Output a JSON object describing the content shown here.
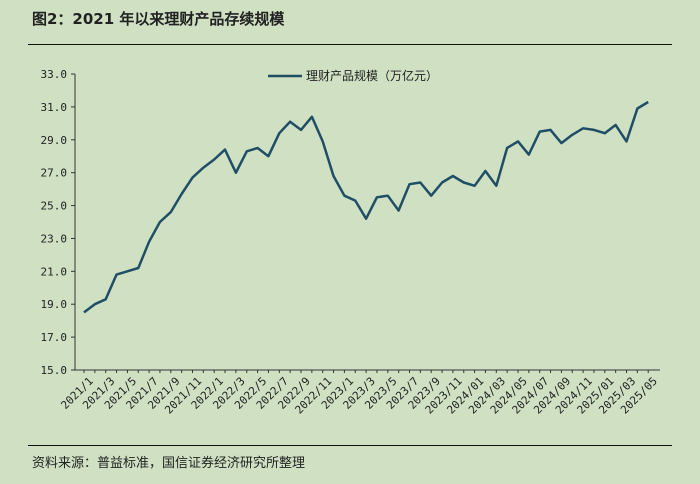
{
  "figure_title": "图2：2021 年以来理财产品存续规模",
  "source_note": "资料来源：普益标准，国信证券经济研究所整理",
  "colors": {
    "line": "#1f4e66",
    "background": "#cfe0c3",
    "axis": "#333333"
  },
  "chart_data": {
    "type": "line",
    "title": "",
    "xlabel": "",
    "ylabel": "",
    "ylim": [
      15.0,
      33.0
    ],
    "y_ticks": [
      "15.0",
      "17.0",
      "19.0",
      "21.0",
      "23.0",
      "25.0",
      "27.0",
      "29.0",
      "31.0",
      "33.0"
    ],
    "x_tick_labels": [
      "2021/1",
      "2021/3",
      "2021/5",
      "2021/7",
      "2021/9",
      "2021/11",
      "2022/1",
      "2022/3",
      "2022/5",
      "2022/7",
      "2022/9",
      "2022/11",
      "2023/1",
      "2023/3",
      "2023/5",
      "2023/7",
      "2023/9",
      "2023/11",
      "2024/01",
      "2024/03",
      "2024/05",
      "2024/07",
      "2024/09",
      "2024/11",
      "2025/01",
      "2025/03",
      "2025/05"
    ],
    "grid": false,
    "legend_position": "top-center",
    "series": [
      {
        "name": "理财产品规模（万亿元）",
        "x": [
          "2021/1",
          "2021/2",
          "2021/3",
          "2021/4",
          "2021/5",
          "2021/6",
          "2021/7",
          "2021/8",
          "2021/9",
          "2021/10",
          "2021/11",
          "2021/12",
          "2022/1",
          "2022/2",
          "2022/3",
          "2022/4",
          "2022/5",
          "2022/6",
          "2022/7",
          "2022/8",
          "2022/9",
          "2022/10",
          "2022/11",
          "2022/12",
          "2023/1",
          "2023/2",
          "2023/3",
          "2023/4",
          "2023/5",
          "2023/6",
          "2023/7",
          "2023/8",
          "2023/9",
          "2023/10",
          "2023/11",
          "2023/12",
          "2024/01",
          "2024/02",
          "2024/03",
          "2024/04",
          "2024/05",
          "2024/06",
          "2024/07",
          "2024/08",
          "2024/09",
          "2024/10",
          "2024/11",
          "2024/12",
          "2025/01",
          "2025/02",
          "2025/03",
          "2025/04",
          "2025/05"
        ],
        "values": [
          18.5,
          19.0,
          19.3,
          20.8,
          21.0,
          21.2,
          22.8,
          24.0,
          24.6,
          25.7,
          26.7,
          27.3,
          27.8,
          28.4,
          27.0,
          28.3,
          28.5,
          28.0,
          29.4,
          30.1,
          29.6,
          30.4,
          28.9,
          26.8,
          25.6,
          25.3,
          24.2,
          25.5,
          25.6,
          24.7,
          26.3,
          26.4,
          25.6,
          26.4,
          26.8,
          26.4,
          26.2,
          27.1,
          26.2,
          28.5,
          28.9,
          28.1,
          29.5,
          29.6,
          28.8,
          29.3,
          29.7,
          29.6,
          29.4,
          29.9,
          28.9,
          30.9,
          31.3
        ]
      }
    ]
  }
}
